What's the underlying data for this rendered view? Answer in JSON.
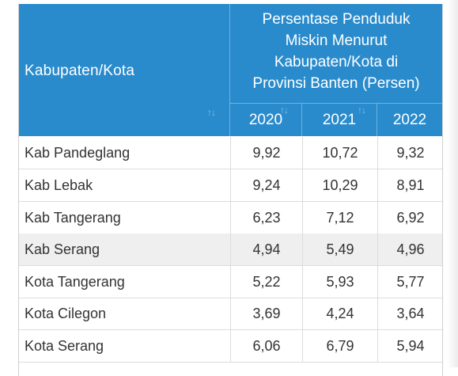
{
  "table": {
    "first_column_header": "Kabupaten/Kota",
    "group_header": "Persentase Penduduk Miskin Menurut Kabupaten/Kota di Provinsi Banten (Persen)",
    "group_header_lines": [
      "Persentase Penduduk",
      "Miskin Menurut",
      "Kabupaten/Kota di",
      "Provinsi Banten (Persen)"
    ],
    "years": [
      "2020",
      "2021",
      "2022"
    ],
    "sort_icon": "sort-arrows-icon",
    "rows": [
      {
        "name": "Kab Pandeglang",
        "values": [
          "9,92",
          "10,72",
          "9,32"
        ]
      },
      {
        "name": "Kab Lebak",
        "values": [
          "9,24",
          "10,29",
          "8,91"
        ]
      },
      {
        "name": "Kab Tangerang",
        "values": [
          "6,23",
          "7,12",
          "6,92"
        ]
      },
      {
        "name": "Kab Serang",
        "values": [
          "4,94",
          "5,49",
          "4,96"
        ]
      },
      {
        "name": "Kota Tangerang",
        "values": [
          "5,22",
          "5,93",
          "5,77"
        ]
      },
      {
        "name": "Kota Cilegon",
        "values": [
          "3,69",
          "4,24",
          "3,64"
        ]
      },
      {
        "name": "Kota Serang",
        "values": [
          "6,06",
          "6,79",
          "5,94"
        ]
      }
    ]
  },
  "colors": {
    "header_bg": "#2a8bcc",
    "header_text": "#ffffff",
    "row_alt_bg": "#efefef",
    "cell_text": "#333333"
  }
}
